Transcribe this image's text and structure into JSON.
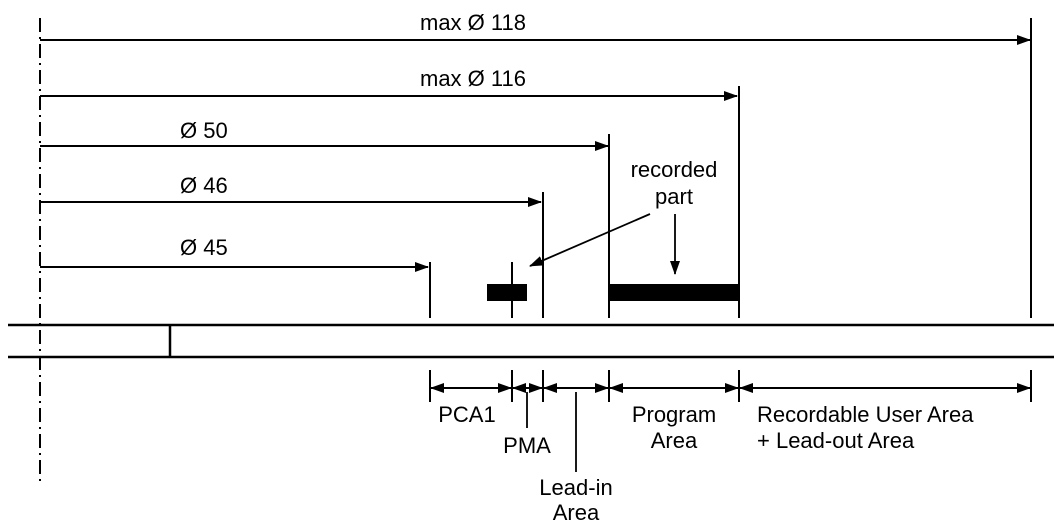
{
  "dimensions": {
    "d118": "max Ø 118",
    "d116": "max Ø 116",
    "d50": "Ø 50",
    "d46": "Ø 46",
    "d45": "Ø 45"
  },
  "callouts": {
    "recorded_line1": "recorded",
    "recorded_line2": "part"
  },
  "zones": {
    "pca1": "PCA1",
    "pma": "PMA",
    "leadin_line1": "Lead-in",
    "leadin_line2": "Area",
    "program_line1": "Program",
    "program_line2": "Area",
    "user_line1": "Recordable User Area",
    "user_line2": "+ Lead-out Area"
  }
}
